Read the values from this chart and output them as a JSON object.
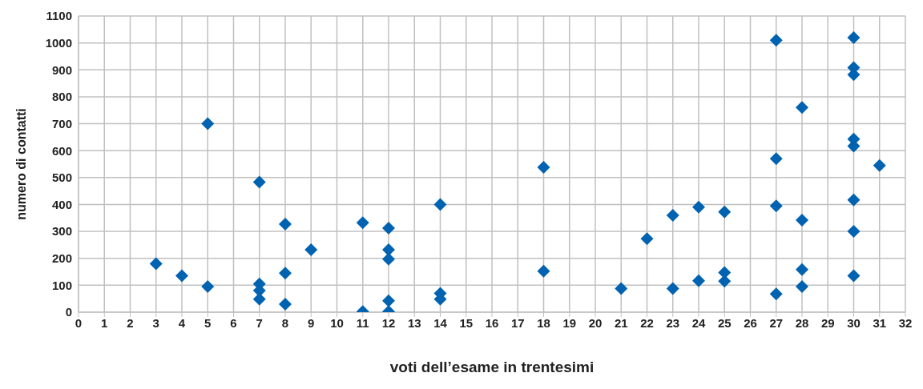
{
  "chart_data": {
    "type": "scatter",
    "xlabel": "voti dell’esame in trentesimi",
    "ylabel": "numero di contatti",
    "x": [
      3,
      4,
      5,
      5,
      7,
      7,
      7,
      7,
      8,
      8,
      8,
      9,
      11,
      11,
      12,
      12,
      12,
      12,
      12,
      14,
      14,
      14,
      18,
      18,
      21,
      22,
      23,
      23,
      24,
      24,
      25,
      25,
      25,
      27,
      27,
      27,
      27,
      28,
      28,
      28,
      28,
      30,
      30,
      30,
      30,
      30,
      30,
      30,
      30,
      31
    ],
    "series": [
      {
        "color": "#0063b1",
        "values": [
          180,
          135,
          700,
          95,
          483,
          105,
          80,
          48,
          327,
          145,
          30,
          232,
          332,
          2,
          312,
          232,
          197,
          42,
          2,
          400,
          70,
          48,
          538,
          152,
          88,
          273,
          360,
          88,
          390,
          117,
          372,
          147,
          115,
          1010,
          570,
          395,
          68,
          760,
          342,
          158,
          95,
          1020,
          908,
          882,
          643,
          617,
          417,
          300,
          135,
          545
        ]
      }
    ],
    "xlim": [
      0,
      32
    ],
    "xticks": [
      0,
      1,
      2,
      3,
      4,
      5,
      6,
      7,
      8,
      9,
      10,
      11,
      12,
      13,
      14,
      15,
      16,
      17,
      18,
      19,
      20,
      21,
      22,
      23,
      24,
      25,
      26,
      27,
      28,
      29,
      30,
      31,
      32
    ],
    "ylim": [
      0,
      1100
    ],
    "yticks": [
      0,
      100,
      200,
      300,
      400,
      500,
      600,
      700,
      800,
      900,
      1000,
      1100
    ],
    "grid": true,
    "marker": "diamond"
  }
}
